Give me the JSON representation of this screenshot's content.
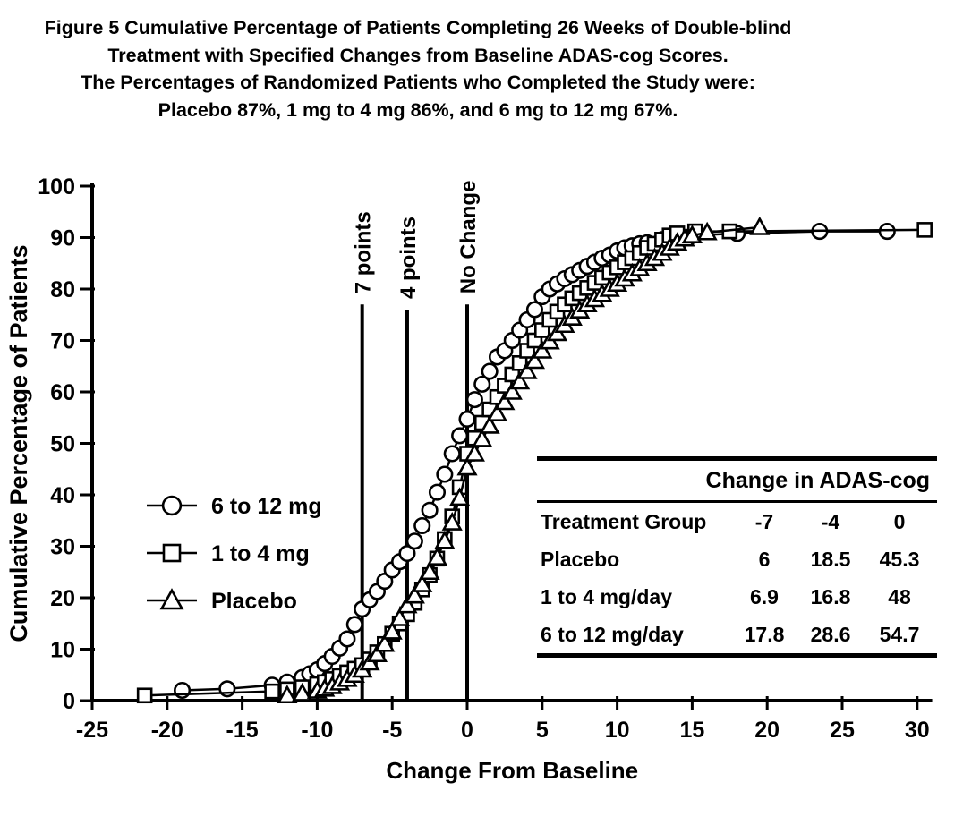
{
  "title": {
    "line1": "Figure 5 Cumulative Percentage of Patients Completing 26 Weeks of Double-blind",
    "line2": "Treatment with Specified Changes from Baseline ADAS-cog Scores.",
    "line3": "The Percentages of Randomized Patients who Completed the Study were:",
    "line4": "Placebo 87%, 1 mg to 4 mg 86%, and 6 mg to 12 mg 67%."
  },
  "chart_data": {
    "type": "line",
    "title": "Figure 5 Cumulative Percentage of Patients Completing 26 Weeks of Double-blind Treatment with Specified Changes from Baseline ADAS-cog Scores. The Percentages of Randomized Patients who Completed the Study were: Placebo 87%, 1 mg to 4 mg 86%, and 6 mg to 12 mg 67%.",
    "xlabel": "Change From Baseline",
    "ylabel": "Cumulative Percentage of Patients",
    "xlim": [
      -25,
      31
    ],
    "ylim": [
      0,
      100
    ],
    "x_ticks": [
      -25,
      -20,
      -15,
      -10,
      -5,
      0,
      5,
      10,
      15,
      20,
      25,
      30
    ],
    "y_ticks": [
      0,
      10,
      20,
      30,
      40,
      50,
      60,
      70,
      80,
      90,
      100
    ],
    "grid": false,
    "legend_position": "inside-left-middle",
    "marker_fill": "#ffffff",
    "ink_color": "#000000",
    "reference_lines": [
      {
        "x": -7,
        "label": "7 points",
        "y_top": 77
      },
      {
        "x": -4,
        "label": "4 points",
        "y_top": 76
      },
      {
        "x": 0,
        "label": "No Change",
        "y_top": 77
      }
    ],
    "series": [
      {
        "name": "6 to 12 mg",
        "marker": "circle",
        "points": [
          [
            -19,
            2
          ],
          [
            -16,
            2.3
          ],
          [
            -13,
            3
          ],
          [
            -12,
            3.6
          ],
          [
            -11,
            4.5
          ],
          [
            -10.5,
            5.2
          ],
          [
            -10,
            6
          ],
          [
            -9.5,
            7.2
          ],
          [
            -9,
            8.6
          ],
          [
            -8.5,
            10.2
          ],
          [
            -8,
            12
          ],
          [
            -7.5,
            14.8
          ],
          [
            -7,
            17.8
          ],
          [
            -6.5,
            19.6
          ],
          [
            -6,
            21.2
          ],
          [
            -5.5,
            23.2
          ],
          [
            -5,
            25.4
          ],
          [
            -4.5,
            27
          ],
          [
            -4,
            28.6
          ],
          [
            -3.5,
            31
          ],
          [
            -3,
            34
          ],
          [
            -2.5,
            37
          ],
          [
            -2,
            40.5
          ],
          [
            -1.5,
            44
          ],
          [
            -1,
            48
          ],
          [
            -0.5,
            51.5
          ],
          [
            0,
            54.7
          ],
          [
            0.5,
            58.5
          ],
          [
            1,
            61.5
          ],
          [
            1.5,
            64
          ],
          [
            2,
            66.8
          ],
          [
            2.5,
            68
          ],
          [
            3,
            70
          ],
          [
            3.5,
            72
          ],
          [
            4,
            74
          ],
          [
            4.5,
            76
          ],
          [
            5,
            78.5
          ],
          [
            5.5,
            80
          ],
          [
            6,
            81
          ],
          [
            6.5,
            82
          ],
          [
            7,
            82.8
          ],
          [
            7.5,
            83.6
          ],
          [
            8,
            84.4
          ],
          [
            8.5,
            85.2
          ],
          [
            9,
            86
          ],
          [
            9.5,
            86.6
          ],
          [
            10,
            87.4
          ],
          [
            10.5,
            88
          ],
          [
            11,
            88.4
          ],
          [
            11.5,
            88.8
          ],
          [
            12,
            89
          ],
          [
            13,
            89.6
          ],
          [
            15,
            90.4
          ],
          [
            18,
            90.8
          ],
          [
            23.5,
            91.2
          ],
          [
            28,
            91.2
          ]
        ]
      },
      {
        "name": "1 to 4 mg",
        "marker": "square",
        "points": [
          [
            -21.5,
            1
          ],
          [
            -13,
            1.8
          ],
          [
            -12,
            2.2
          ],
          [
            -11,
            2.6
          ],
          [
            -10,
            3.2
          ],
          [
            -9.5,
            3.6
          ],
          [
            -9,
            4.2
          ],
          [
            -8.5,
            4.8
          ],
          [
            -8,
            5.5
          ],
          [
            -7.5,
            6.2
          ],
          [
            -7,
            6.9
          ],
          [
            -6.5,
            8
          ],
          [
            -6,
            9.4
          ],
          [
            -5.5,
            11
          ],
          [
            -5,
            13
          ],
          [
            -4.5,
            15
          ],
          [
            -4,
            16.8
          ],
          [
            -3.5,
            19
          ],
          [
            -3,
            21.6
          ],
          [
            -2.5,
            24.4
          ],
          [
            -2,
            27.6
          ],
          [
            -1.5,
            31.4
          ],
          [
            -1,
            35.8
          ],
          [
            -0.5,
            41.5
          ],
          [
            0,
            48
          ],
          [
            0.5,
            51
          ],
          [
            1,
            54
          ],
          [
            1.5,
            56.6
          ],
          [
            2,
            59
          ],
          [
            2.5,
            61.2
          ],
          [
            3,
            63.4
          ],
          [
            3.5,
            65.6
          ],
          [
            4,
            68
          ],
          [
            4.5,
            70
          ],
          [
            5,
            72
          ],
          [
            5.5,
            74
          ],
          [
            6,
            75.6
          ],
          [
            6.5,
            77
          ],
          [
            7,
            78.2
          ],
          [
            7.5,
            79.2
          ],
          [
            8,
            80.2
          ],
          [
            8.5,
            81.2
          ],
          [
            9,
            82.2
          ],
          [
            9.5,
            83.2
          ],
          [
            10,
            84.2
          ],
          [
            10.5,
            85.2
          ],
          [
            11,
            86
          ],
          [
            11.5,
            87
          ],
          [
            12,
            88
          ],
          [
            12.5,
            88.8
          ],
          [
            13,
            89.6
          ],
          [
            13.5,
            90.4
          ],
          [
            14,
            90.8
          ],
          [
            15.2,
            91.2
          ],
          [
            17.5,
            91.2
          ],
          [
            30.5,
            91.5
          ]
        ]
      },
      {
        "name": "Placebo",
        "marker": "triangle",
        "points": [
          [
            -12,
            1
          ],
          [
            -11,
            1.4
          ],
          [
            -10,
            1.9
          ],
          [
            -9.5,
            2.3
          ],
          [
            -9,
            2.8
          ],
          [
            -8.5,
            3.5
          ],
          [
            -8,
            4.2
          ],
          [
            -7.5,
            5
          ],
          [
            -7,
            6
          ],
          [
            -6.5,
            7.4
          ],
          [
            -6,
            9
          ],
          [
            -5.5,
            11
          ],
          [
            -5,
            13.4
          ],
          [
            -4.5,
            16
          ],
          [
            -4,
            18.5
          ],
          [
            -3.5,
            20.4
          ],
          [
            -3,
            22.6
          ],
          [
            -2.5,
            25
          ],
          [
            -2,
            27.8
          ],
          [
            -1.5,
            31
          ],
          [
            -1,
            34.6
          ],
          [
            -0.5,
            39.4
          ],
          [
            0,
            45.3
          ],
          [
            0.5,
            48
          ],
          [
            1,
            50.8
          ],
          [
            1.5,
            53.4
          ],
          [
            2,
            55.8
          ],
          [
            2.5,
            58
          ],
          [
            3,
            60
          ],
          [
            3.5,
            62
          ],
          [
            4,
            64
          ],
          [
            4.5,
            66
          ],
          [
            5,
            68
          ],
          [
            5.5,
            69.8
          ],
          [
            6,
            71.4
          ],
          [
            6.5,
            73
          ],
          [
            7,
            74.4
          ],
          [
            7.5,
            75.8
          ],
          [
            8,
            77
          ],
          [
            8.5,
            78
          ],
          [
            9,
            79
          ],
          [
            9.5,
            80
          ],
          [
            10,
            81
          ],
          [
            10.5,
            82
          ],
          [
            11,
            83
          ],
          [
            11.5,
            84
          ],
          [
            12,
            85
          ],
          [
            12.5,
            86
          ],
          [
            13,
            87
          ],
          [
            13.5,
            88
          ],
          [
            14,
            89
          ],
          [
            14.5,
            89.8
          ],
          [
            15,
            90.4
          ],
          [
            16,
            91
          ],
          [
            19.5,
            92
          ]
        ]
      }
    ]
  },
  "legend": {
    "entries": [
      {
        "label": "6 to 12 mg",
        "marker": "circle"
      },
      {
        "label": "1 to 4 mg",
        "marker": "square"
      },
      {
        "label": "Placebo",
        "marker": "triangle"
      }
    ]
  },
  "inset_table": {
    "title": "Change in ADAS-cog",
    "columns": [
      "Treatment Group",
      "-7",
      "-4",
      "0"
    ],
    "rows": [
      [
        "Placebo",
        "6",
        "18.5",
        "45.3"
      ],
      [
        "1 to 4 mg/day",
        "6.9",
        "16.8",
        "48"
      ],
      [
        "6 to 12 mg/day",
        "17.8",
        "28.6",
        "54.7"
      ]
    ]
  },
  "colors": {
    "ink": "#000000",
    "background": "#ffffff"
  }
}
